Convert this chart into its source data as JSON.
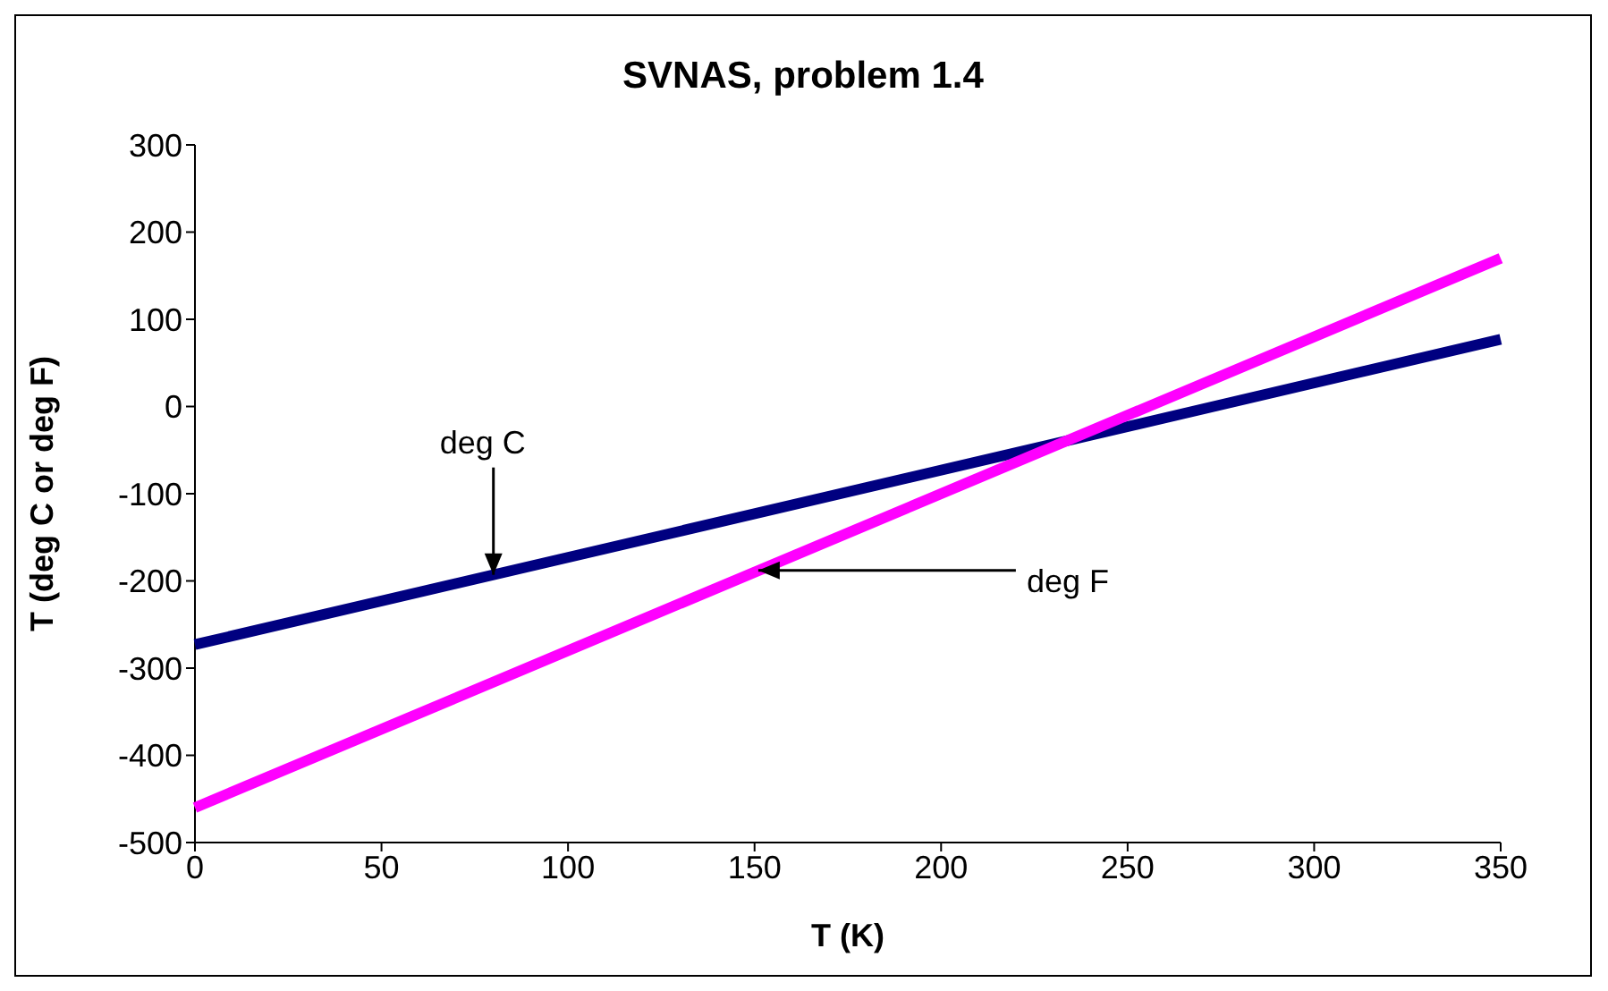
{
  "chart_data": {
    "type": "line",
    "title": "SVNAS, problem 1.4",
    "xlabel": "T (K)",
    "ylabel": "T (deg C or deg F)",
    "xlim": [
      0,
      350
    ],
    "xticks": [
      0,
      50,
      100,
      150,
      200,
      250,
      300,
      350
    ],
    "ylim": [
      -500,
      300
    ],
    "yticks": [
      -500,
      -400,
      -300,
      -200,
      -100,
      0,
      100,
      200,
      300
    ],
    "grid": false,
    "legend": false,
    "marker": "none",
    "line_style": "solid",
    "x": [
      0,
      350
    ],
    "series": [
      {
        "color": "#000080",
        "values": [
          -273,
          77
        ]
      },
      {
        "color": "#ff00ff",
        "values": [
          -460,
          170
        ]
      }
    ],
    "annotations": [
      {
        "text": "deg C",
        "x": 80,
        "y": -193
      },
      {
        "text": "deg F",
        "x": 151,
        "y": -188
      }
    ]
  }
}
